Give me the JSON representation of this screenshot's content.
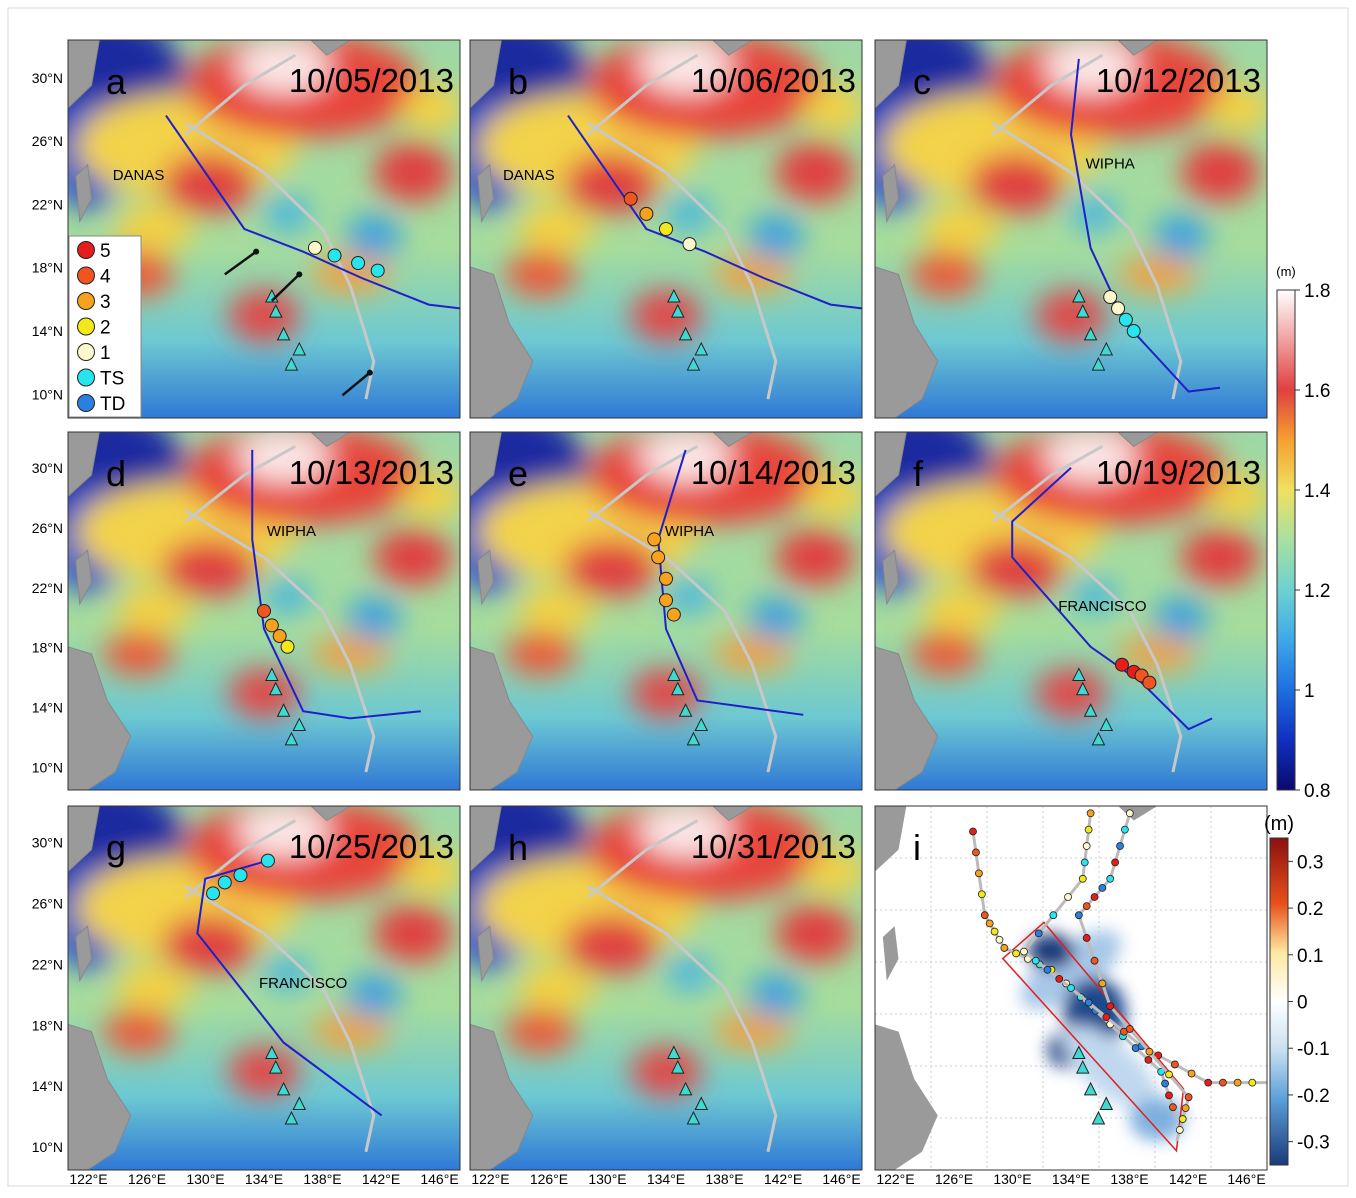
{
  "panels": [
    {
      "label": "a",
      "date": "10/05/2013",
      "storm": "DANAS"
    },
    {
      "label": "b",
      "date": "10/06/2013",
      "storm": "DANAS"
    },
    {
      "label": "c",
      "date": "10/12/2013",
      "storm": "WIPHA"
    },
    {
      "label": "d",
      "date": "10/13/2013",
      "storm": "WIPHA"
    },
    {
      "label": "e",
      "date": "10/14/2013",
      "storm": "WIPHA"
    },
    {
      "label": "f",
      "date": "10/19/2013",
      "storm": "FRANCISCO"
    },
    {
      "label": "g",
      "date": "10/25/2013",
      "storm": "FRANCISCO"
    },
    {
      "label": "h",
      "date": "10/31/2013"
    },
    {
      "label": "i"
    }
  ],
  "legend": {
    "items": [
      {
        "label": "5",
        "color": "#e51d1d"
      },
      {
        "label": "4",
        "color": "#f05520"
      },
      {
        "label": "3",
        "color": "#f7a21e"
      },
      {
        "label": "2",
        "color": "#f4e81a"
      },
      {
        "label": "1",
        "color": "#fdf8cc"
      },
      {
        "label": "TS",
        "color": "#28e4ee"
      },
      {
        "label": "TD",
        "color": "#2a80e0"
      }
    ]
  },
  "lat_ticks": [
    "30°N",
    "26°N",
    "22°N",
    "18°N",
    "14°N",
    "10°N"
  ],
  "lon_ticks": [
    "122°E",
    "126°E",
    "130°E",
    "134°E",
    "138°E",
    "142°E",
    "146°E"
  ],
  "colorbar_ssh": {
    "unit": "(m)",
    "lim": [
      0.8,
      1.8
    ],
    "ticks": [
      0.8,
      1,
      1.2,
      1.4,
      1.6,
      1.8
    ]
  },
  "colorbar_anomaly": {
    "unit": "(m)",
    "lim": [
      -0.35,
      0.35
    ],
    "ticks": [
      0.3,
      0.2,
      0.1,
      0,
      -0.1,
      -0.2,
      -0.3
    ]
  }
}
